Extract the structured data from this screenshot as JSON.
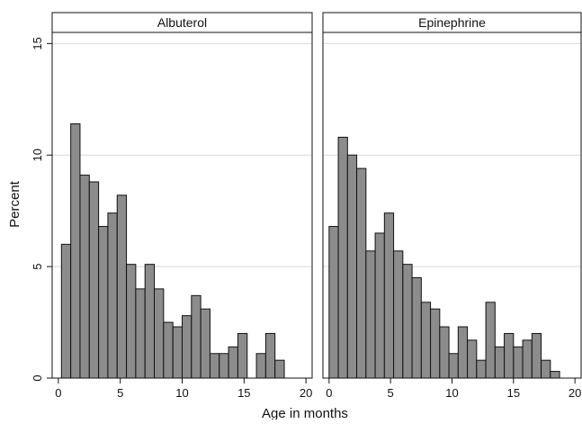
{
  "chart_data": {
    "type": "bar",
    "xlabel": "Age in months",
    "ylabel": "Percent",
    "xlim": [
      -0.5,
      20.5
    ],
    "ylim": [
      0,
      15.5
    ],
    "xticks": [
      0,
      5,
      10,
      15,
      20
    ],
    "yticks": [
      0,
      5,
      10,
      15
    ],
    "grid": true,
    "bin_width": 0.75,
    "panels": [
      {
        "label": "Albuterol",
        "bins": [
          {
            "x": 0.25,
            "value": 6.0
          },
          {
            "x": 1.0,
            "value": 11.4
          },
          {
            "x": 1.75,
            "value": 9.1
          },
          {
            "x": 2.5,
            "value": 8.8
          },
          {
            "x": 3.25,
            "value": 6.8
          },
          {
            "x": 4.0,
            "value": 7.4
          },
          {
            "x": 4.75,
            "value": 8.2
          },
          {
            "x": 5.5,
            "value": 5.1
          },
          {
            "x": 6.25,
            "value": 4.0
          },
          {
            "x": 7.0,
            "value": 5.1
          },
          {
            "x": 7.75,
            "value": 4.0
          },
          {
            "x": 8.5,
            "value": 2.5
          },
          {
            "x": 9.25,
            "value": 2.3
          },
          {
            "x": 10.0,
            "value": 2.8
          },
          {
            "x": 10.75,
            "value": 3.7
          },
          {
            "x": 11.5,
            "value": 3.1
          },
          {
            "x": 12.25,
            "value": 1.1
          },
          {
            "x": 13.0,
            "value": 1.1
          },
          {
            "x": 13.75,
            "value": 1.4
          },
          {
            "x": 14.5,
            "value": 2.0
          },
          {
            "x": 16.0,
            "value": 1.1
          },
          {
            "x": 16.75,
            "value": 2.0
          },
          {
            "x": 17.5,
            "value": 0.8
          }
        ]
      },
      {
        "label": "Epinephrine",
        "bins": [
          {
            "x": 0.0,
            "value": 6.8
          },
          {
            "x": 0.75,
            "value": 10.8
          },
          {
            "x": 1.5,
            "value": 10.0
          },
          {
            "x": 2.25,
            "value": 9.4
          },
          {
            "x": 3.0,
            "value": 5.7
          },
          {
            "x": 3.75,
            "value": 6.5
          },
          {
            "x": 4.5,
            "value": 7.4
          },
          {
            "x": 5.25,
            "value": 5.7
          },
          {
            "x": 6.0,
            "value": 5.1
          },
          {
            "x": 6.75,
            "value": 4.5
          },
          {
            "x": 7.5,
            "value": 3.4
          },
          {
            "x": 8.25,
            "value": 3.1
          },
          {
            "x": 9.0,
            "value": 2.3
          },
          {
            "x": 9.75,
            "value": 1.1
          },
          {
            "x": 10.5,
            "value": 2.3
          },
          {
            "x": 11.25,
            "value": 1.7
          },
          {
            "x": 12.0,
            "value": 0.8
          },
          {
            "x": 12.75,
            "value": 3.4
          },
          {
            "x": 13.5,
            "value": 1.4
          },
          {
            "x": 14.25,
            "value": 2.0
          },
          {
            "x": 15.0,
            "value": 1.4
          },
          {
            "x": 15.75,
            "value": 1.7
          },
          {
            "x": 16.5,
            "value": 2.0
          },
          {
            "x": 17.25,
            "value": 0.8
          },
          {
            "x": 18.0,
            "value": 0.3
          }
        ]
      }
    ]
  }
}
